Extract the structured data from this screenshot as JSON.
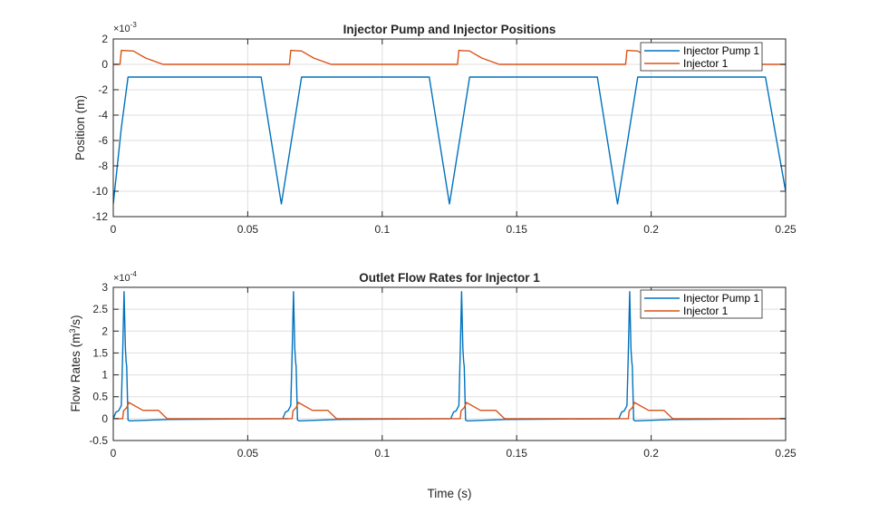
{
  "figure": {
    "colors": {
      "series1": "#0072BD",
      "series2": "#D95319",
      "grid": "#dfdfdf",
      "axis": "#262626"
    }
  },
  "chart_data": [
    {
      "type": "line",
      "title": "Injector Pump and Injector Positions",
      "xlabel": "",
      "ylabel": "Position (m)",
      "y_multiplier": "×10^-3",
      "xlim": [
        0,
        0.25
      ],
      "ylim": [
        -12,
        2
      ],
      "xticks": [
        "0",
        "0.05",
        "0.1",
        "0.15",
        "0.2",
        "0.25"
      ],
      "yticks": [
        "2",
        "0",
        "-2",
        "-4",
        "-6",
        "-8",
        "-10",
        "-12"
      ],
      "grid": true,
      "legend_position": "northeast",
      "series": [
        {
          "name": "Injector Pump 1",
          "x": [
            0,
            0.003,
            0.0055,
            0.055,
            0.058,
            0.0625,
            0.067,
            0.07,
            0.1175,
            0.1205,
            0.125,
            0.1295,
            0.1325,
            0.18,
            0.183,
            0.1875,
            0.192,
            0.195,
            0.2425,
            0.25
          ],
          "values": [
            -11,
            -5,
            -1,
            -1,
            -5,
            -11,
            -5,
            -1,
            -1,
            -5,
            -11,
            -5,
            -1,
            -1,
            -5,
            -11,
            -5,
            -1,
            -1,
            -10
          ]
        },
        {
          "name": "Injector 1",
          "x": [
            0,
            0.0025,
            0.003,
            0.0075,
            0.012,
            0.0185,
            0.065,
            0.0655,
            0.066,
            0.07,
            0.0745,
            0.081,
            0.1275,
            0.128,
            0.1285,
            0.1325,
            0.137,
            0.1435,
            0.19,
            0.1905,
            0.191,
            0.195,
            0.1995,
            0.206,
            0.25
          ],
          "values": [
            0,
            0,
            1.1,
            1.05,
            0.5,
            0,
            0,
            0,
            1.1,
            1.05,
            0.5,
            0,
            0,
            0,
            1.1,
            1.05,
            0.5,
            0,
            0,
            0,
            1.1,
            1.05,
            0.5,
            0,
            0
          ]
        }
      ]
    },
    {
      "type": "line",
      "title": "Outlet Flow Rates for Injector 1",
      "xlabel": "Time (s)",
      "ylabel": "Flow  Rates  (m^3/s)",
      "y_multiplier": "×10^-4",
      "xlim": [
        0,
        0.25
      ],
      "ylim": [
        -0.5,
        3
      ],
      "xticks": [
        "0",
        "0.05",
        "0.1",
        "0.15",
        "0.2",
        "0.25"
      ],
      "yticks": [
        "3",
        "2.5",
        "2",
        "1.5",
        "1",
        "0.5",
        "0",
        "-0.5"
      ],
      "grid": true,
      "legend_position": "northeast",
      "series": [
        {
          "name": "Injector Pump 1",
          "peaks_at": [
            0.004,
            0.067,
            0.1295,
            0.192
          ],
          "peak_value": 2.9,
          "x": [
            0,
            0.001,
            0.002,
            0.003,
            0.0035,
            0.004,
            0.0045,
            0.0048,
            0.005,
            0.0055,
            0.006,
            0.02,
            0.065
          ],
          "values": [
            0,
            0.15,
            0.18,
            0.3,
            1.5,
            2.9,
            1.6,
            1.3,
            1.2,
            -0.03,
            -0.05,
            -0.02,
            0
          ]
        },
        {
          "name": "Injector 1",
          "x": [
            0,
            0.0035,
            0.0038,
            0.005,
            0.0058,
            0.011,
            0.0168,
            0.02,
            0.065
          ],
          "values": [
            0,
            0,
            0.18,
            0.25,
            0.37,
            0.19,
            0.19,
            0,
            0
          ]
        }
      ]
    }
  ],
  "plots": {
    "top": {
      "title": "Injector Pump and Injector Positions",
      "ylabel": "Position (m)",
      "exp_base": "×10",
      "exp_power": "-3",
      "legend": [
        "Injector Pump 1",
        "Injector 1"
      ]
    },
    "bottom": {
      "title": "Outlet Flow Rates for Injector 1",
      "ylabel_main": "Flow  Rates  (m",
      "ylabel_sup": "3",
      "ylabel_tail": "/s)",
      "xlabel": "Time (s)",
      "exp_base": "×10",
      "exp_power": "-4",
      "legend": [
        "Injector Pump 1",
        "Injector 1"
      ]
    }
  }
}
